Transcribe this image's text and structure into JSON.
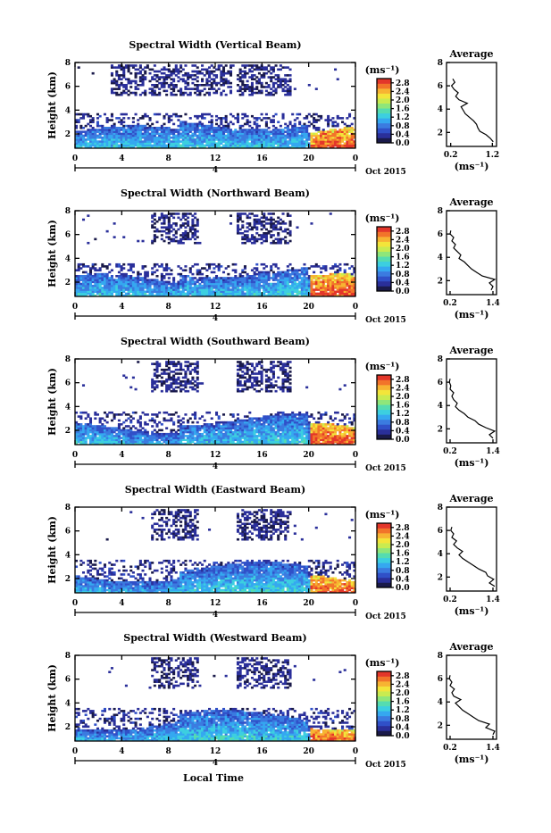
{
  "figure": {
    "xlabel": "Local Time",
    "date_label": "Oct 2015",
    "marker_label": "4",
    "height_label": "Height (km)",
    "unit_label": "(ms⁻¹)",
    "average_title": "Average",
    "average_xlabel": "(ms⁻¹)",
    "colormap": [
      "#1a1a4a",
      "#2a2f9a",
      "#3050c8",
      "#3b7be0",
      "#35a8f0",
      "#3ccfe0",
      "#55dcb0",
      "#8fe67a",
      "#c9eb50",
      "#f3e53a",
      "#f7b432",
      "#f2742a",
      "#e3362a"
    ]
  },
  "chart_data": [
    {
      "type": "heatmap",
      "title": "Spectral Width (Vertical Beam)",
      "xticks": [
        "0",
        "4",
        "8",
        "12",
        "16",
        "20",
        "0"
      ],
      "yticks": [
        "2",
        "4",
        "6",
        "8"
      ],
      "xlim": [
        0,
        24
      ],
      "ylim": [
        0.8,
        8
      ],
      "colorbar_ticks": [
        "0.0",
        "0.4",
        "0.8",
        "1.2",
        "1.6",
        "2.0",
        "2.4",
        "2.8"
      ],
      "colorbar_range": [
        0,
        3.0
      ],
      "profile": {
        "xticks": [
          "0.2",
          "1.2"
        ],
        "xlim": [
          0.1,
          1.3
        ],
        "yticks": [
          "2",
          "4",
          "6",
          "8"
        ],
        "ylim": [
          0.8,
          8
        ],
        "height": [
          1.2,
          1.5,
          1.8,
          2.1,
          2.4,
          2.7,
          3.0,
          3.3,
          3.6,
          3.9,
          4.2,
          4.5,
          4.8,
          5.1,
          5.4,
          5.7,
          6.0,
          6.3,
          6.6
        ],
        "width": [
          1.22,
          1.15,
          1.05,
          0.9,
          0.85,
          0.82,
          0.75,
          0.65,
          0.55,
          0.5,
          0.45,
          0.6,
          0.4,
          0.32,
          0.38,
          0.28,
          0.22,
          0.3,
          0.25
        ]
      }
    },
    {
      "type": "heatmap",
      "title": "Spectral Width (Northward Beam)",
      "xticks": [
        "0",
        "4",
        "8",
        "12",
        "16",
        "20",
        "0"
      ],
      "yticks": [
        "2",
        "4",
        "6",
        "8"
      ],
      "xlim": [
        0,
        24
      ],
      "ylim": [
        0.8,
        8
      ],
      "colorbar_ticks": [
        "0.0",
        "0.4",
        "0.8",
        "1.2",
        "1.6",
        "2.0",
        "2.4",
        "2.8"
      ],
      "colorbar_range": [
        0,
        3.0
      ],
      "profile": {
        "xticks": [
          "0.2",
          "1.4"
        ],
        "xlim": [
          0.1,
          1.5
        ],
        "yticks": [
          "2",
          "4",
          "6",
          "8"
        ],
        "ylim": [
          0.8,
          8
        ],
        "height": [
          1.2,
          1.5,
          1.8,
          2.1,
          2.4,
          2.7,
          3.0,
          3.3,
          3.6,
          3.9,
          4.2,
          4.5,
          4.8,
          5.1,
          5.4,
          5.7,
          6.0,
          6.3
        ],
        "width": [
          1.35,
          1.4,
          1.3,
          1.45,
          1.1,
          0.95,
          0.8,
          0.7,
          0.6,
          0.45,
          0.5,
          0.4,
          0.3,
          0.35,
          0.25,
          0.3,
          0.2,
          0.22
        ]
      }
    },
    {
      "type": "heatmap",
      "title": "Spectral Width (Southward Beam)",
      "xticks": [
        "0",
        "4",
        "8",
        "12",
        "16",
        "20",
        "0"
      ],
      "yticks": [
        "2",
        "4",
        "6",
        "8"
      ],
      "xlim": [
        0,
        24
      ],
      "ylim": [
        0.8,
        8
      ],
      "colorbar_ticks": [
        "0.0",
        "0.4",
        "0.8",
        "1.2",
        "1.6",
        "2.0",
        "2.4",
        "2.8"
      ],
      "colorbar_range": [
        0,
        3.0
      ],
      "profile": {
        "xticks": [
          "0.2",
          "1.4"
        ],
        "xlim": [
          0.1,
          1.5
        ],
        "yticks": [
          "2",
          "4",
          "6",
          "8"
        ],
        "ylim": [
          0.8,
          8
        ],
        "height": [
          1.2,
          1.5,
          1.8,
          2.1,
          2.4,
          2.7,
          3.0,
          3.3,
          3.6,
          3.9,
          4.2,
          4.5,
          4.8,
          5.1,
          5.4,
          5.7,
          6.0,
          6.3
        ],
        "width": [
          1.4,
          1.3,
          1.45,
          1.2,
          1.0,
          0.9,
          0.7,
          0.6,
          0.45,
          0.35,
          0.4,
          0.3,
          0.25,
          0.3,
          0.2,
          0.22,
          0.18,
          0.2
        ]
      }
    },
    {
      "type": "heatmap",
      "title": "Spectral Width (Eastward Beam)",
      "xticks": [
        "0",
        "4",
        "8",
        "12",
        "16",
        "20",
        "0"
      ],
      "yticks": [
        "2",
        "4",
        "6",
        "8"
      ],
      "xlim": [
        0,
        24
      ],
      "ylim": [
        0.8,
        8
      ],
      "colorbar_ticks": [
        "0.0",
        "0.4",
        "0.8",
        "1.2",
        "1.6",
        "2.0",
        "2.4",
        "2.8"
      ],
      "colorbar_range": [
        0,
        3.0
      ],
      "profile": {
        "xticks": [
          "0.2",
          "1.4"
        ],
        "xlim": [
          0.1,
          1.5
        ],
        "yticks": [
          "2",
          "4",
          "6",
          "8"
        ],
        "ylim": [
          0.8,
          8
        ],
        "height": [
          1.2,
          1.5,
          1.8,
          2.1,
          2.4,
          2.7,
          3.0,
          3.3,
          3.6,
          3.9,
          4.2,
          4.5,
          4.8,
          5.1,
          5.4,
          5.7,
          6.0,
          6.3
        ],
        "width": [
          1.45,
          1.3,
          1.42,
          1.25,
          1.2,
          1.0,
          0.85,
          0.7,
          0.55,
          0.45,
          0.55,
          0.4,
          0.3,
          0.38,
          0.25,
          0.3,
          0.22,
          0.25
        ]
      }
    },
    {
      "type": "heatmap",
      "title": "Spectral Width (Westward Beam)",
      "xticks": [
        "0",
        "4",
        "8",
        "12",
        "16",
        "20",
        "0"
      ],
      "yticks": [
        "2",
        "4",
        "6",
        "8"
      ],
      "xlim": [
        0,
        24
      ],
      "ylim": [
        0.8,
        8
      ],
      "colorbar_ticks": [
        "0.0",
        "0.4",
        "0.8",
        "1.2",
        "1.6",
        "2.0",
        "2.4",
        "2.8"
      ],
      "colorbar_range": [
        0,
        3.0
      ],
      "profile": {
        "xticks": [
          "0.2",
          "1.4"
        ],
        "xlim": [
          0.1,
          1.5
        ],
        "yticks": [
          "2",
          "4",
          "6",
          "8"
        ],
        "ylim": [
          0.8,
          8
        ],
        "height": [
          1.2,
          1.5,
          1.8,
          2.1,
          2.4,
          2.7,
          3.0,
          3.3,
          3.6,
          3.9,
          4.2,
          4.5,
          4.8,
          5.1,
          5.4,
          5.7,
          6.0,
          6.3
        ],
        "width": [
          1.4,
          1.45,
          1.2,
          1.3,
          1.0,
          0.85,
          0.7,
          0.55,
          0.45,
          0.35,
          0.5,
          0.3,
          0.25,
          0.32,
          0.2,
          0.25,
          0.18,
          0.2
        ]
      }
    }
  ]
}
